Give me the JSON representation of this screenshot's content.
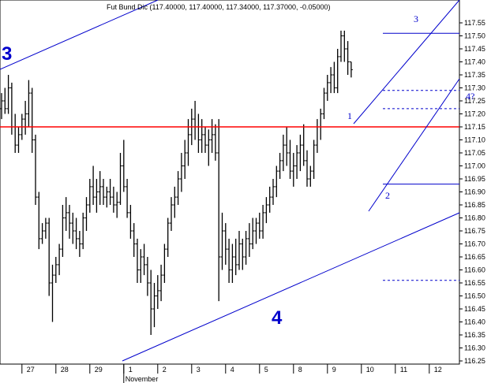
{
  "chart_data": {
    "type": "ohlc",
    "title": "Fut Bund Dic (117.40000, 117.40000, 117.34000, 117.37000, -0.05000)",
    "xlabel": "",
    "ylabel": "",
    "ylim": [
      116.23,
      117.61
    ],
    "y_ticks": [
      "116.25",
      "116.30",
      "116.35",
      "116.40",
      "116.45",
      "116.50",
      "116.55",
      "116.60",
      "116.65",
      "116.70",
      "116.75",
      "116.80",
      "116.85",
      "116.90",
      "116.95",
      "117.00",
      "117.05",
      "117.10",
      "117.15",
      "117.20",
      "117.25",
      "117.30",
      "117.35",
      "117.40",
      "117.45",
      "117.50",
      "117.55"
    ],
    "x_ticks": [
      {
        "label": "27",
        "bar": 6
      },
      {
        "label": "28",
        "bar": 16
      },
      {
        "label": "29",
        "bar": 26
      },
      {
        "label": "1",
        "bar": 36
      },
      {
        "label": "2",
        "bar": 46
      },
      {
        "label": "3",
        "bar": 56
      },
      {
        "label": "4",
        "bar": 66
      },
      {
        "label": "5",
        "bar": 76
      },
      {
        "label": "8",
        "bar": 86
      },
      {
        "label": "9",
        "bar": 96
      },
      {
        "label": "10",
        "bar": 106
      },
      {
        "label": "11",
        "bar": 116
      },
      {
        "label": "12",
        "bar": 126
      }
    ],
    "month_label": {
      "label": "November",
      "bar": 36
    },
    "bars": [
      [
        117.22,
        117.28,
        117.18,
        117.25
      ],
      [
        117.25,
        117.3,
        117.2,
        117.22
      ],
      [
        117.22,
        117.35,
        117.2,
        117.3
      ],
      [
        117.3,
        117.32,
        117.12,
        117.15
      ],
      [
        117.15,
        117.2,
        117.05,
        117.08
      ],
      [
        117.08,
        117.15,
        117.05,
        117.12
      ],
      [
        117.12,
        117.2,
        117.1,
        117.18
      ],
      [
        117.18,
        117.25,
        117.12,
        117.2
      ],
      [
        117.2,
        117.33,
        117.15,
        117.28
      ],
      [
        117.28,
        117.3,
        117.05,
        117.1
      ],
      [
        117.1,
        117.12,
        116.85,
        116.88
      ],
      [
        116.88,
        116.9,
        116.68,
        116.72
      ],
      [
        116.72,
        116.78,
        116.7,
        116.75
      ],
      [
        116.75,
        116.8,
        116.72,
        116.78
      ],
      [
        116.78,
        116.8,
        116.5,
        116.55
      ],
      [
        116.55,
        116.62,
        116.4,
        116.58
      ],
      [
        116.58,
        116.65,
        116.55,
        116.62
      ],
      [
        116.62,
        116.7,
        116.58,
        116.68
      ],
      [
        116.68,
        116.85,
        116.65,
        116.8
      ],
      [
        116.8,
        116.88,
        116.75,
        116.82
      ],
      [
        116.82,
        116.85,
        116.72,
        116.78
      ],
      [
        116.78,
        116.82,
        116.7,
        116.75
      ],
      [
        116.75,
        116.8,
        116.68,
        116.72
      ],
      [
        116.72,
        116.75,
        116.65,
        116.7
      ],
      [
        116.7,
        116.82,
        116.68,
        116.8
      ],
      [
        116.8,
        116.88,
        116.75,
        116.85
      ],
      [
        116.85,
        116.95,
        116.82,
        116.92
      ],
      [
        116.92,
        117.0,
        116.85,
        116.88
      ],
      [
        116.88,
        116.95,
        116.82,
        116.9
      ],
      [
        116.9,
        116.98,
        116.85,
        116.92
      ],
      [
        116.92,
        116.95,
        116.85,
        116.88
      ],
      [
        116.88,
        116.92,
        116.84,
        116.9
      ],
      [
        116.9,
        116.95,
        116.85,
        116.88
      ],
      [
        116.88,
        116.92,
        116.82,
        116.85
      ],
      [
        116.85,
        116.9,
        116.8,
        116.86
      ],
      [
        116.86,
        117.05,
        116.85,
        117.0
      ],
      [
        117.0,
        117.1,
        116.9,
        116.92
      ],
      [
        116.92,
        116.95,
        116.8,
        116.82
      ],
      [
        116.82,
        116.85,
        116.72,
        116.75
      ],
      [
        116.75,
        116.78,
        116.65,
        116.7
      ],
      [
        116.7,
        116.72,
        116.55,
        116.6
      ],
      [
        116.6,
        116.68,
        116.55,
        116.65
      ],
      [
        116.65,
        116.7,
        116.58,
        116.62
      ],
      [
        116.62,
        116.65,
        116.5,
        116.55
      ],
      [
        116.55,
        116.6,
        116.35,
        116.45
      ],
      [
        116.45,
        116.55,
        116.38,
        116.5
      ],
      [
        116.5,
        116.58,
        116.45,
        116.52
      ],
      [
        116.52,
        116.62,
        116.48,
        116.58
      ],
      [
        116.58,
        116.7,
        116.55,
        116.68
      ],
      [
        116.68,
        116.8,
        116.65,
        116.78
      ],
      [
        116.78,
        116.88,
        116.75,
        116.85
      ],
      [
        116.85,
        116.92,
        116.8,
        116.88
      ],
      [
        116.88,
        116.98,
        116.85,
        116.95
      ],
      [
        116.95,
        117.05,
        116.9,
        117.0
      ],
      [
        117.0,
        117.1,
        116.95,
        117.05
      ],
      [
        117.05,
        117.18,
        117.0,
        117.12
      ],
      [
        117.12,
        117.22,
        117.08,
        117.18
      ],
      [
        117.18,
        117.25,
        117.1,
        117.15
      ],
      [
        117.15,
        117.2,
        117.05,
        117.1
      ],
      [
        117.1,
        117.18,
        117.05,
        117.12
      ],
      [
        117.12,
        117.15,
        117.05,
        117.08
      ],
      [
        117.08,
        117.14,
        117.0,
        117.1
      ],
      [
        117.1,
        117.18,
        117.05,
        117.12
      ],
      [
        117.12,
        117.16,
        117.02,
        117.05
      ],
      [
        117.05,
        117.18,
        116.48,
        116.65
      ],
      [
        116.65,
        116.82,
        116.6,
        116.75
      ],
      [
        116.75,
        116.78,
        116.62,
        116.68
      ],
      [
        116.68,
        116.72,
        116.55,
        116.6
      ],
      [
        116.6,
        116.7,
        116.55,
        116.65
      ],
      [
        116.65,
        116.72,
        116.58,
        116.62
      ],
      [
        116.62,
        116.75,
        116.6,
        116.7
      ],
      [
        116.7,
        116.72,
        116.6,
        116.65
      ],
      [
        116.65,
        116.75,
        116.62,
        116.72
      ],
      [
        116.72,
        116.78,
        116.65,
        116.7
      ],
      [
        116.7,
        116.8,
        116.68,
        116.75
      ],
      [
        116.75,
        116.8,
        116.7,
        116.78
      ],
      [
        116.78,
        116.82,
        116.72,
        116.75
      ],
      [
        116.75,
        116.85,
        116.72,
        116.82
      ],
      [
        116.82,
        116.88,
        116.78,
        116.85
      ],
      [
        116.85,
        116.92,
        116.82,
        116.88
      ],
      [
        116.88,
        116.95,
        116.85,
        116.92
      ],
      [
        116.92,
        117.0,
        116.88,
        116.98
      ],
      [
        116.98,
        117.05,
        116.95,
        117.02
      ],
      [
        117.02,
        117.12,
        116.98,
        117.08
      ],
      [
        117.08,
        117.15,
        117.0,
        117.05
      ],
      [
        117.05,
        117.1,
        116.95,
        116.98
      ],
      [
        116.98,
        117.05,
        116.92,
        117.0
      ],
      [
        117.0,
        117.08,
        116.95,
        117.05
      ],
      [
        117.05,
        117.12,
        116.98,
        117.08
      ],
      [
        117.08,
        117.16,
        117.0,
        117.02
      ],
      [
        117.02,
        117.06,
        116.92,
        116.95
      ],
      [
        116.95,
        117.0,
        116.92,
        116.98
      ],
      [
        116.98,
        117.1,
        116.95,
        117.08
      ],
      [
        117.08,
        117.18,
        117.05,
        117.15
      ],
      [
        117.15,
        117.22,
        117.1,
        117.2
      ],
      [
        117.2,
        117.3,
        117.18,
        117.28
      ],
      [
        117.28,
        117.35,
        117.25,
        117.32
      ],
      [
        117.32,
        117.38,
        117.28,
        117.35
      ],
      [
        117.35,
        117.4,
        117.28,
        117.3
      ],
      [
        117.3,
        117.45,
        117.28,
        117.42
      ],
      [
        117.42,
        117.52,
        117.4,
        117.5
      ],
      [
        117.5,
        117.52,
        117.4,
        117.45
      ],
      [
        117.45,
        117.48,
        117.35,
        117.4
      ],
      [
        117.4,
        117.4,
        117.34,
        117.37
      ]
    ]
  },
  "annotations": {
    "wave3_left": "3",
    "wave4": "4",
    "label1": "1",
    "label2": "2",
    "label3": "3",
    "label4q": "4?"
  },
  "colors": {
    "price": "#000000",
    "trendline": "#0000cc",
    "support": "#ff0000",
    "level": "#0000cc"
  }
}
